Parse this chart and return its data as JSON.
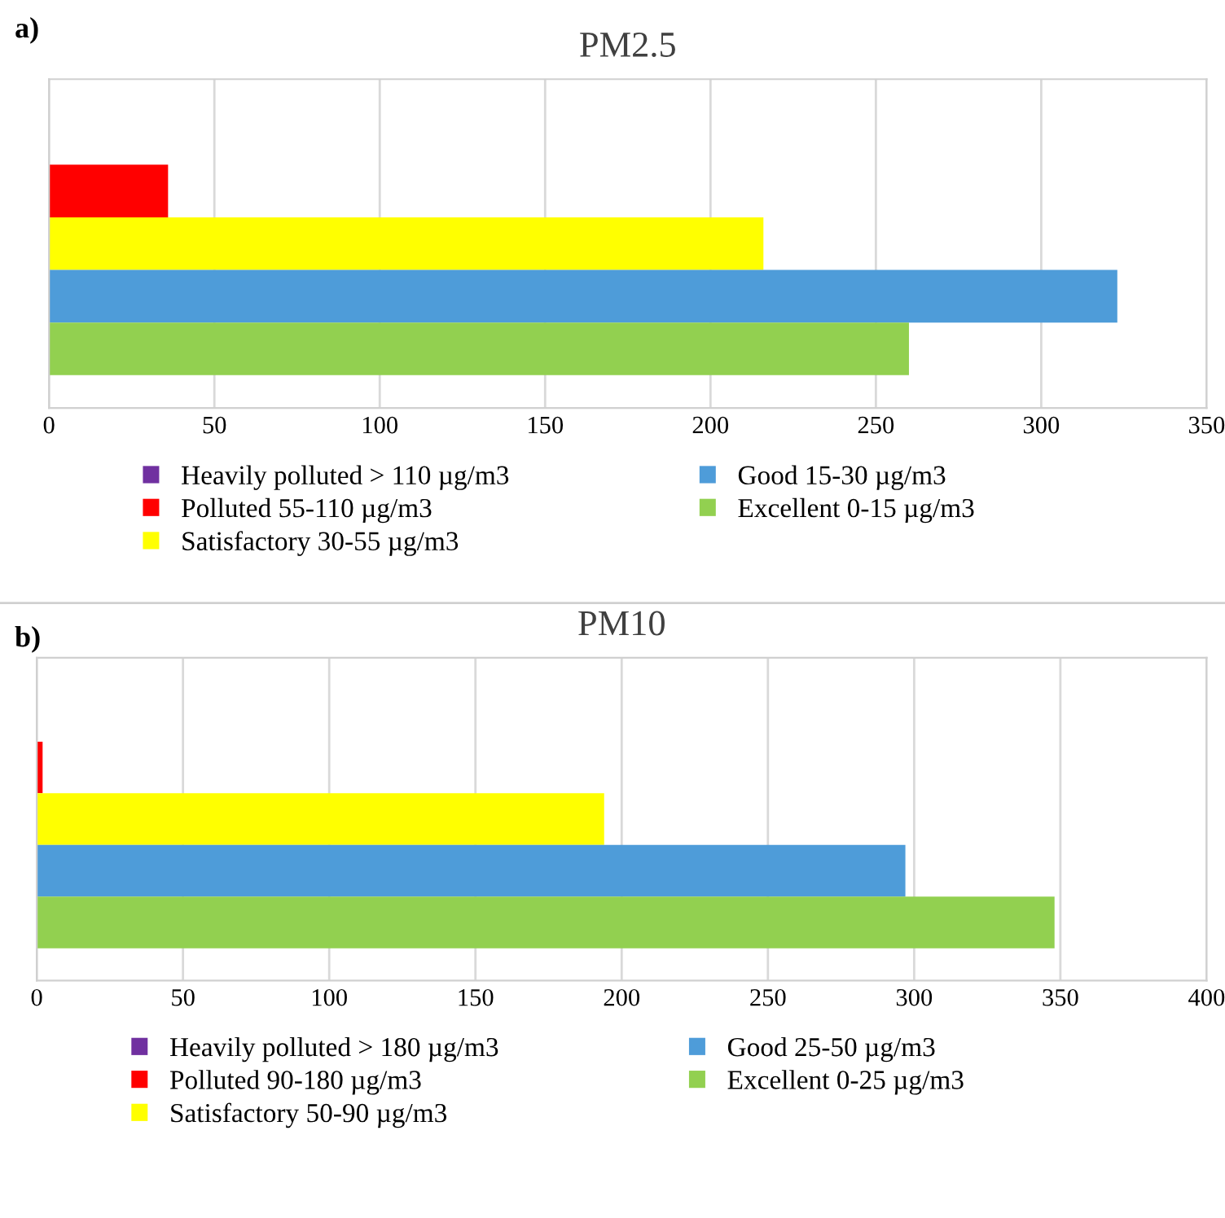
{
  "chart_data": [
    {
      "type": "bar",
      "orientation": "horizontal",
      "title": "PM2.5",
      "annotations": [
        "a)"
      ],
      "categories": [
        null
      ],
      "xlim": [
        0,
        350
      ],
      "xticks": [
        0,
        50,
        100,
        150,
        200,
        250,
        300,
        350
      ],
      "grid": "x",
      "legend": "bottom",
      "tick_labels": "x",
      "series": [
        {
          "name": "Heavily polluted > 110 µg/m3",
          "color": "#7030a0",
          "values": [
            0
          ]
        },
        {
          "name": "Polluted 55-110 µg/m3",
          "color": "#ff0000",
          "values": [
            36
          ]
        },
        {
          "name": "Satisfactory 30-55 µg/m3",
          "color": "#ffff00",
          "values": [
            216
          ]
        },
        {
          "name": "Good 15-30 µg/m3",
          "color": "#4e9cd9",
          "values": [
            323
          ]
        },
        {
          "name": "Excellent 0-15 µg/m3",
          "color": "#92d050",
          "values": [
            260
          ]
        }
      ]
    },
    {
      "type": "bar",
      "orientation": "horizontal",
      "title": "PM10",
      "annotations": [
        "b)"
      ],
      "categories": [
        null
      ],
      "xlim": [
        0,
        400
      ],
      "xticks": [
        0,
        50,
        100,
        150,
        200,
        250,
        300,
        350,
        400
      ],
      "grid": "x",
      "legend": "bottom",
      "tick_labels": "x",
      "series": [
        {
          "name": "Heavily polluted > 180 µg/m3",
          "color": "#7030a0",
          "values": [
            0
          ]
        },
        {
          "name": "Polluted 90-180 µg/m3",
          "color": "#ff0000",
          "values": [
            2
          ]
        },
        {
          "name": "Satisfactory 50-90 µg/m3",
          "color": "#ffff00",
          "values": [
            194
          ]
        },
        {
          "name": "Good 25-50 µg/m3",
          "color": "#4e9cd9",
          "values": [
            297
          ]
        },
        {
          "name": "Excellent 0-25 µg/m3",
          "color": "#92d050",
          "values": [
            348
          ]
        }
      ]
    }
  ]
}
